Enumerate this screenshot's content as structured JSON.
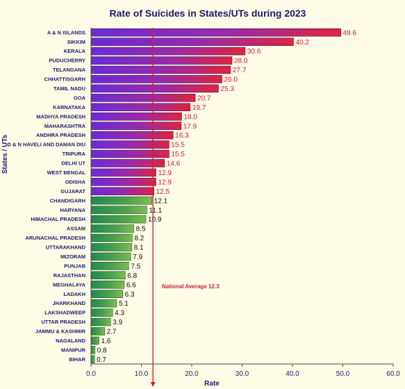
{
  "chart_data": {
    "type": "bar",
    "orientation": "horizontal",
    "title": "Rate of Suicides in States/UTs during 2023",
    "xlabel": "Rate",
    "ylabel": "States / UTs",
    "xlim": [
      0,
      60
    ],
    "xticks": [
      "0.0",
      "10.0",
      "20.0",
      "30.0",
      "40.0",
      "50.0",
      "60.0"
    ],
    "grid": false,
    "reference_line": {
      "value": 12.3,
      "label": "National Average 12.3",
      "color": "#d0222a"
    },
    "colors": {
      "above_average": "#8a2cc8",
      "below_average": "#3d9a44"
    },
    "categories": [
      "A & N ISLANDS",
      "SIKKIM",
      "KERALA",
      "PUDUCHERRY",
      "TELANGANA",
      "CHHATTISGARH",
      "TAMIL NADU",
      "GOA",
      "KARNATAKA",
      "MADHYA PRADESH",
      "MAHARASHTRA",
      "ANDHRA PRADESH",
      "D & N HAVELI AND DAMAN DIU",
      "TRIPURA",
      "DELHI UT",
      "WEST BENGAL",
      "ODISHA",
      "GUJARAT",
      "CHANDIGARH",
      "HARYANA",
      "HIMACHAL PRADESH",
      "ASSAM",
      "ARUNACHAL PRADESH",
      "UTTARAKHAND",
      "MIZORAM",
      "PUNJAB",
      "RAJASTHAN",
      "MEGHALAYA",
      "LADAKH",
      "JHARKHAND",
      "LAKSHADWEEP",
      "UTTAR PRADESH",
      "JAMMU & KASHMIR",
      "NAGALAND",
      "MANIPUR",
      "BIHAR"
    ],
    "values": [
      49.6,
      40.2,
      30.6,
      28.0,
      27.7,
      26.0,
      25.3,
      20.7,
      19.7,
      18.0,
      17.9,
      16.3,
      15.5,
      15.5,
      14.6,
      12.9,
      12.9,
      12.5,
      12.1,
      11.1,
      10.9,
      8.5,
      8.2,
      8.1,
      7.9,
      7.5,
      6.8,
      6.6,
      6.3,
      5.1,
      4.3,
      3.9,
      2.7,
      1.6,
      0.8,
      0.7
    ],
    "value_labels": [
      "49.6",
      "40.2",
      "30.6",
      "28.0",
      "27.7",
      "26.0",
      "25.3",
      "20.7",
      "19.7",
      "18.0",
      "17.9",
      "16.3",
      "15.5",
      "15.5",
      "14.6",
      "12.9",
      "12.9",
      "12.5",
      "12.1",
      "11.1",
      "10.9",
      "8.5",
      "8.2",
      "8.1",
      "7.9",
      "7.5",
      "6.8",
      "6.6",
      "6.3",
      "5.1",
      "4.3",
      "3.9",
      "2.7",
      "1.6",
      "0.8",
      "0.7"
    ]
  }
}
